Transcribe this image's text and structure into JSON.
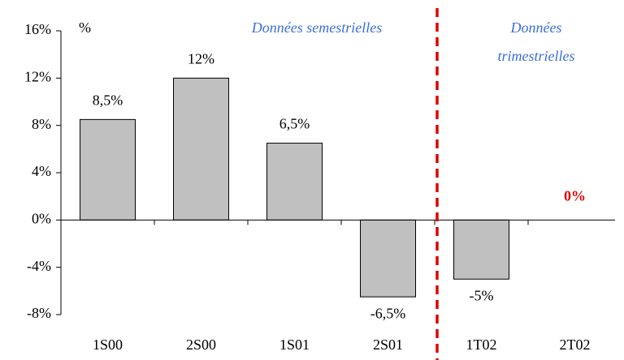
{
  "chart_data": {
    "type": "bar",
    "unit_label": "%",
    "categories": [
      "1S00",
      "2S00",
      "1S01",
      "2S01",
      "1T02",
      "2T02"
    ],
    "values": [
      8.5,
      12,
      6.5,
      -6.5,
      -5,
      0
    ],
    "value_labels": [
      "8,5%",
      "12%",
      "6,5%",
      "-6,5%",
      "-5%",
      "0%"
    ],
    "colors": [
      "#c0c0c0",
      "#c0c0c0",
      "#c0c0c0",
      "#c0c0c0",
      "#c0c0c0",
      "#e00000"
    ],
    "value_label_colors": [
      "#000000",
      "#000000",
      "#000000",
      "#000000",
      "#000000",
      "#e00000"
    ],
    "ylim": [
      -8,
      16
    ],
    "yticks": [
      {
        "value": -8,
        "label": "-8%"
      },
      {
        "value": -4,
        "label": "-4%"
      },
      {
        "value": 0,
        "label": "0%"
      },
      {
        "value": 4,
        "label": "4%"
      },
      {
        "value": 8,
        "label": "8%"
      },
      {
        "value": 12,
        "label": "12%"
      },
      {
        "value": 16,
        "label": "16%"
      }
    ],
    "grid": false,
    "annotations": [
      "Données semestrielles",
      "Données",
      "trimestrielles"
    ]
  }
}
